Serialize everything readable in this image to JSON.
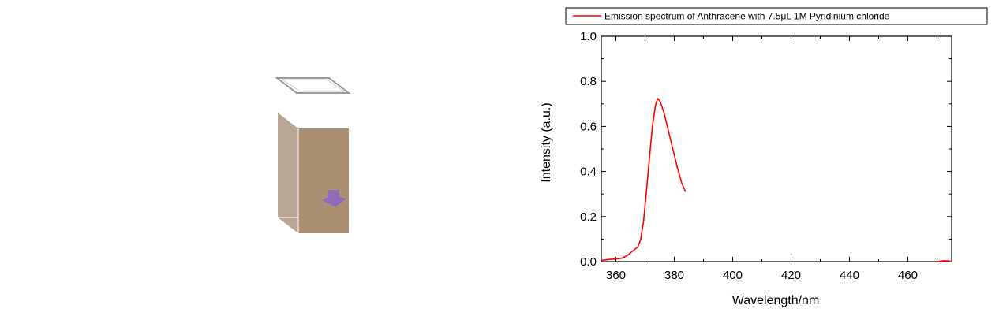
{
  "illustration": {
    "name": "cuvette",
    "colors": {
      "lid": "#9a9a9a",
      "front_face": "#aa8f73",
      "side_face": "#b9a695",
      "arrow": "#8f6cba"
    }
  },
  "chart_data": {
    "type": "line",
    "title": "",
    "xlabel": "Wavelength/nm",
    "ylabel": "Intensity (a.u.)",
    "xlim": [
      355,
      475
    ],
    "ylim": [
      0.0,
      1.0
    ],
    "xticks": [
      360,
      380,
      400,
      420,
      440,
      460
    ],
    "yticks": [
      0.0,
      0.2,
      0.4,
      0.6,
      0.8,
      1.0
    ],
    "xtick_labels": [
      "360",
      "380",
      "400",
      "420",
      "440",
      "460"
    ],
    "ytick_labels": [
      "0.0",
      "0.2",
      "0.4",
      "0.6",
      "0.8",
      "1.0"
    ],
    "legend": {
      "position": "top",
      "entries": [
        "Emission spectrum of Anthracene with 7.5μL 1M Pyridinium chloride"
      ]
    },
    "series": [
      {
        "name": "Emission spectrum of Anthracene with 7.5μL 1M Pyridinium chloride",
        "color": "#ff0000",
        "segments": [
          {
            "x": [
              355,
              358,
              360,
              362,
              364,
              366,
              367.5,
              368.5,
              369.5,
              370.5,
              371.5,
              372.5,
              373.5,
              374.3,
              375.2,
              376.5,
              378,
              379.5,
              381,
              382.5,
              383.8
            ],
            "y": [
              0.005,
              0.01,
              0.012,
              0.015,
              0.028,
              0.05,
              0.065,
              0.1,
              0.18,
              0.32,
              0.46,
              0.6,
              0.69,
              0.725,
              0.71,
              0.66,
              0.58,
              0.5,
              0.42,
              0.35,
              0.31
            ]
          },
          {
            "x": [
              470,
              472,
              474,
              475
            ],
            "y": [
              0.0,
              0.003,
              0.003,
              0.0
            ]
          }
        ]
      }
    ]
  }
}
